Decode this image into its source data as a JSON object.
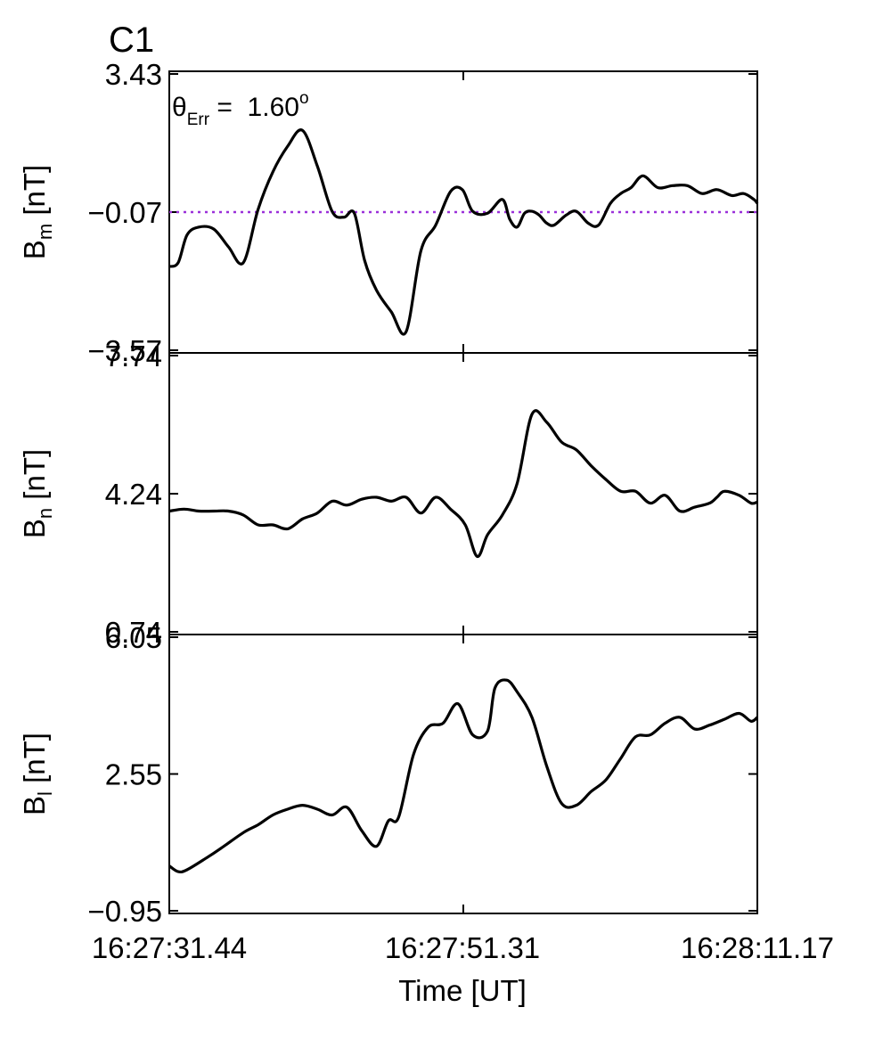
{
  "figure": {
    "spacecraft_label": "C1",
    "spacecraft_color": "#e8000b",
    "theta_symbol": "θ",
    "theta_subscript": "Err",
    "theta_equals": " =  ",
    "theta_value": "1.60",
    "theta_superscript": "o",
    "xlabel": "Time [UT]"
  },
  "chart_data": [
    {
      "type": "line",
      "panel": "Bm",
      "ylabel": "B",
      "ylabel_subscript": "m",
      "ylabel_unit": " [nT]",
      "ylim": [
        -3.57,
        3.43
      ],
      "yticks": [
        "3.43",
        "−0.07",
        "−3.57"
      ],
      "xlim": [
        0,
        39.73
      ],
      "reference_line": {
        "y": -0.07,
        "style": "dotted",
        "color": "#9b30d9"
      },
      "line_color": "#000000",
      "series": [
        {
          "x": [
            0.0,
            0.6,
            1.2,
            2.0,
            3.0,
            4.0,
            5.0,
            6.0,
            7.0,
            8.0,
            9.0,
            10.0,
            11.0,
            11.8,
            12.5,
            13.2,
            14.0,
            15.0,
            16.0,
            17.0,
            18.0,
            19.0,
            19.8,
            20.5,
            21.5,
            22.5,
            23.0,
            23.5,
            24.0,
            24.5,
            25.0,
            25.5,
            26.0,
            26.8,
            27.5,
            28.3,
            29.0,
            29.8,
            30.5,
            31.2,
            32.0,
            33.0,
            34.0,
            35.0,
            36.0,
            37.0,
            38.0,
            38.8,
            39.5,
            39.73
          ],
          "y": [
            -1.45,
            -1.35,
            -0.65,
            -0.45,
            -0.5,
            -0.95,
            -1.35,
            0.0,
            0.95,
            1.6,
            2.0,
            1.1,
            -0.05,
            -0.2,
            -0.1,
            -1.3,
            -2.05,
            -2.6,
            -3.1,
            -1.05,
            -0.4,
            0.45,
            0.5,
            -0.05,
            -0.1,
            0.25,
            -0.25,
            -0.45,
            -0.1,
            -0.05,
            -0.15,
            -0.35,
            -0.4,
            -0.15,
            -0.05,
            -0.35,
            -0.4,
            0.15,
            0.4,
            0.55,
            0.85,
            0.55,
            0.6,
            0.6,
            0.4,
            0.5,
            0.35,
            0.4,
            0.25,
            0.15
          ]
        }
      ]
    },
    {
      "type": "line",
      "panel": "Bn",
      "ylabel": "B",
      "ylabel_subscript": "n",
      "ylabel_unit": " [nT]",
      "ylim": [
        0.74,
        7.74
      ],
      "yticks": [
        "7.74",
        "4.24",
        "0.74"
      ],
      "xlim": [
        0,
        39.73
      ],
      "line_color": "#000000",
      "series": [
        {
          "x": [
            0.0,
            1.0,
            2.0,
            3.0,
            4.0,
            5.0,
            6.0,
            7.0,
            8.0,
            9.0,
            10.0,
            11.0,
            12.0,
            13.0,
            14.0,
            15.0,
            16.0,
            17.0,
            18.0,
            19.0,
            20.0,
            20.8,
            21.5,
            22.5,
            23.5,
            24.5,
            25.5,
            26.5,
            27.5,
            28.5,
            29.5,
            30.5,
            31.5,
            32.5,
            33.5,
            34.5,
            35.5,
            36.5,
            37.0,
            37.5,
            38.5,
            39.3,
            39.73
          ],
          "y": [
            3.8,
            3.85,
            3.8,
            3.8,
            3.8,
            3.7,
            3.45,
            3.45,
            3.35,
            3.6,
            3.75,
            4.05,
            3.95,
            4.1,
            4.15,
            4.05,
            4.15,
            3.75,
            4.15,
            3.85,
            3.45,
            2.65,
            3.2,
            3.7,
            4.5,
            6.25,
            6.05,
            5.55,
            5.35,
            4.95,
            4.6,
            4.3,
            4.3,
            4.0,
            4.2,
            3.8,
            3.9,
            4.0,
            4.15,
            4.3,
            4.2,
            4.0,
            4.03
          ]
        }
      ]
    },
    {
      "type": "line",
      "panel": "Bl",
      "ylabel": "B",
      "ylabel_subscript": "l",
      "ylabel_unit": " [nT]",
      "ylim": [
        -0.95,
        6.05
      ],
      "yticks": [
        "6.05",
        "2.55",
        "−0.95"
      ],
      "xlim": [
        0,
        39.73
      ],
      "line_color": "#000000",
      "series": [
        {
          "x": [
            0.0,
            0.6,
            1.2,
            2.5,
            3.5,
            5.0,
            6.0,
            7.0,
            8.0,
            9.0,
            10.0,
            11.0,
            12.0,
            13.0,
            14.0,
            14.8,
            15.5,
            16.5,
            17.5,
            18.5,
            19.5,
            20.5,
            21.5,
            22.0,
            22.8,
            23.5,
            24.5,
            25.5,
            26.5,
            27.5,
            28.5,
            29.5,
            30.5,
            31.5,
            32.5,
            33.5,
            34.5,
            35.5,
            36.5,
            37.5,
            38.5,
            39.3,
            39.73
          ],
          "y": [
            0.2,
            0.05,
            0.1,
            0.4,
            0.65,
            1.05,
            1.25,
            1.5,
            1.65,
            1.75,
            1.65,
            1.5,
            1.7,
            1.1,
            0.7,
            1.35,
            1.45,
            3.05,
            3.75,
            3.85,
            4.35,
            3.55,
            3.65,
            4.75,
            4.95,
            4.65,
            4.0,
            2.75,
            1.8,
            1.75,
            2.1,
            2.4,
            2.95,
            3.5,
            3.55,
            3.85,
            4.0,
            3.7,
            3.8,
            3.95,
            4.1,
            3.9,
            4.0
          ]
        }
      ]
    }
  ],
  "x_axis": {
    "ticks": [
      "16:27:31.44",
      "16:27:51.31",
      "16:28:11.17"
    ],
    "tick_values": [
      0,
      19.865,
      39.73
    ]
  }
}
